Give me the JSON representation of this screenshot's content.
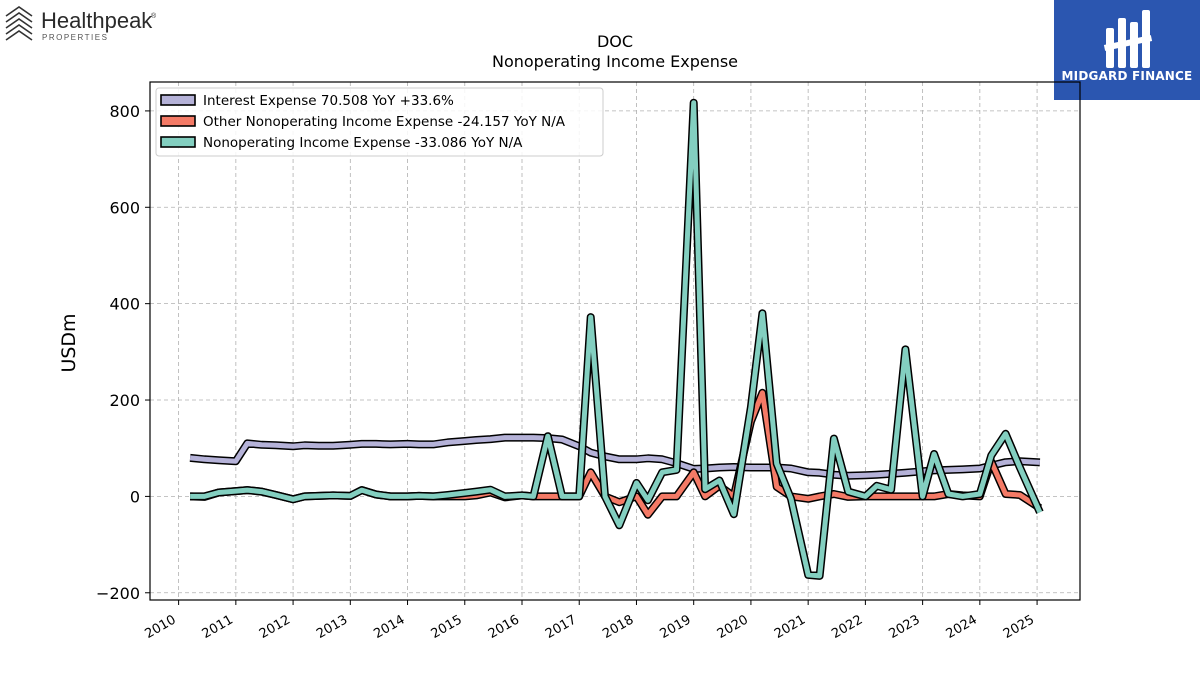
{
  "brands": {
    "left": {
      "name": "Healthpeak",
      "sub": "PROPERTIES",
      "mark": "®"
    },
    "right": {
      "name": "MIDGARD FINANCE"
    }
  },
  "chart_data": {
    "type": "line",
    "title": "DOC",
    "subtitle": "Nonoperating Income Expense",
    "ylabel": "USDm",
    "xlabel": "",
    "xlim": [
      2009.5,
      2025.75
    ],
    "ylim": [
      -215,
      860
    ],
    "yticks": [
      -200,
      0,
      200,
      400,
      600,
      800
    ],
    "xticks": [
      2010,
      2011,
      2012,
      2013,
      2014,
      2015,
      2016,
      2017,
      2018,
      2019,
      2020,
      2021,
      2022,
      2023,
      2024,
      2025
    ],
    "grid": true,
    "legend_position": "top-left",
    "series": [
      {
        "name": "Interest Expense",
        "legend": "Interest Expense  70.508 YoY +33.6%",
        "color": "#b5b2d8",
        "points": [
          [
            2010.2,
            80
          ],
          [
            2010.45,
            77
          ],
          [
            2010.7,
            75
          ],
          [
            2011.0,
            73
          ],
          [
            2011.2,
            110
          ],
          [
            2011.45,
            107
          ],
          [
            2011.7,
            106
          ],
          [
            2012.0,
            104
          ],
          [
            2012.2,
            106
          ],
          [
            2012.45,
            105
          ],
          [
            2012.7,
            105
          ],
          [
            2013.0,
            107
          ],
          [
            2013.2,
            109
          ],
          [
            2013.45,
            109
          ],
          [
            2013.7,
            108
          ],
          [
            2014.0,
            109
          ],
          [
            2014.2,
            108
          ],
          [
            2014.45,
            108
          ],
          [
            2014.7,
            112
          ],
          [
            2015.0,
            115
          ],
          [
            2015.2,
            117
          ],
          [
            2015.45,
            119
          ],
          [
            2015.7,
            122
          ],
          [
            2016.0,
            122
          ],
          [
            2016.2,
            122
          ],
          [
            2016.45,
            121
          ],
          [
            2016.7,
            118
          ],
          [
            2017.0,
            104
          ],
          [
            2017.2,
            91
          ],
          [
            2017.45,
            83
          ],
          [
            2017.7,
            77
          ],
          [
            2018.0,
            77
          ],
          [
            2018.2,
            79
          ],
          [
            2018.45,
            77
          ],
          [
            2018.7,
            69
          ],
          [
            2019.0,
            57
          ],
          [
            2019.2,
            58
          ],
          [
            2019.45,
            60
          ],
          [
            2019.7,
            61
          ],
          [
            2020.0,
            60
          ],
          [
            2020.2,
            60
          ],
          [
            2020.45,
            60
          ],
          [
            2020.7,
            58
          ],
          [
            2021.0,
            50
          ],
          [
            2021.2,
            49
          ],
          [
            2021.45,
            45
          ],
          [
            2021.7,
            43
          ],
          [
            2022.0,
            44
          ],
          [
            2022.2,
            45
          ],
          [
            2022.45,
            47
          ],
          [
            2022.7,
            49
          ],
          [
            2023.0,
            52
          ],
          [
            2023.2,
            54
          ],
          [
            2023.45,
            55
          ],
          [
            2023.7,
            56
          ],
          [
            2024.0,
            58
          ],
          [
            2024.2,
            64
          ],
          [
            2024.45,
            71
          ],
          [
            2024.7,
            73
          ],
          [
            2025.05,
            70.5
          ]
        ]
      },
      {
        "name": "Other Nonoperating Income Expense",
        "legend": "Other Nonoperating Income Expense  -24.157 YoY N/A",
        "color": "#f47a66",
        "points": [
          [
            2010.2,
            0
          ],
          [
            2010.45,
            -1
          ],
          [
            2010.7,
            8
          ],
          [
            2011.0,
            11
          ],
          [
            2011.2,
            13
          ],
          [
            2011.45,
            10
          ],
          [
            2011.7,
            3
          ],
          [
            2012.0,
            -6
          ],
          [
            2012.2,
            0
          ],
          [
            2012.45,
            1
          ],
          [
            2012.7,
            2
          ],
          [
            2013.0,
            1
          ],
          [
            2013.2,
            13
          ],
          [
            2013.45,
            4
          ],
          [
            2013.7,
            0
          ],
          [
            2014.0,
            0
          ],
          [
            2014.2,
            1
          ],
          [
            2014.45,
            0
          ],
          [
            2014.7,
            0
          ],
          [
            2015.0,
            0
          ],
          [
            2015.2,
            2
          ],
          [
            2015.45,
            8
          ],
          [
            2015.7,
            -2
          ],
          [
            2016.0,
            2
          ],
          [
            2016.2,
            0
          ],
          [
            2016.45,
            0
          ],
          [
            2016.7,
            0
          ],
          [
            2017.0,
            0
          ],
          [
            2017.2,
            50
          ],
          [
            2017.45,
            0
          ],
          [
            2017.7,
            -12
          ],
          [
            2018.0,
            0
          ],
          [
            2018.2,
            -38
          ],
          [
            2018.45,
            0
          ],
          [
            2018.7,
            0
          ],
          [
            2019.0,
            50
          ],
          [
            2019.2,
            0
          ],
          [
            2019.45,
            22
          ],
          [
            2019.7,
            0
          ],
          [
            2020.0,
            155
          ],
          [
            2020.2,
            215
          ],
          [
            2020.45,
            20
          ],
          [
            2020.7,
            0
          ],
          [
            2021.0,
            -5
          ],
          [
            2021.2,
            0
          ],
          [
            2021.45,
            5
          ],
          [
            2021.7,
            -1
          ],
          [
            2022.0,
            0
          ],
          [
            2022.2,
            0
          ],
          [
            2022.45,
            0
          ],
          [
            2022.7,
            0
          ],
          [
            2023.0,
            0
          ],
          [
            2023.2,
            0
          ],
          [
            2023.45,
            5
          ],
          [
            2023.7,
            2
          ],
          [
            2024.0,
            0
          ],
          [
            2024.2,
            72
          ],
          [
            2024.45,
            5
          ],
          [
            2024.7,
            3
          ],
          [
            2025.05,
            -24.2
          ]
        ]
      },
      {
        "name": "Nonoperating Income Expense",
        "legend": "Nonoperating Income Expense  -33.086 YoY N/A",
        "color": "#83cfc0",
        "points": [
          [
            2010.2,
            0
          ],
          [
            2010.45,
            0
          ],
          [
            2010.7,
            8
          ],
          [
            2011.0,
            11
          ],
          [
            2011.2,
            13
          ],
          [
            2011.45,
            10
          ],
          [
            2011.7,
            3
          ],
          [
            2012.0,
            -6
          ],
          [
            2012.2,
            0
          ],
          [
            2012.45,
            1
          ],
          [
            2012.7,
            2
          ],
          [
            2013.0,
            1
          ],
          [
            2013.2,
            13
          ],
          [
            2013.45,
            4
          ],
          [
            2013.7,
            0
          ],
          [
            2014.0,
            0
          ],
          [
            2014.2,
            1
          ],
          [
            2014.45,
            0
          ],
          [
            2014.7,
            3
          ],
          [
            2015.0,
            7
          ],
          [
            2015.2,
            10
          ],
          [
            2015.45,
            14
          ],
          [
            2015.7,
            0
          ],
          [
            2016.0,
            2
          ],
          [
            2016.2,
            0
          ],
          [
            2016.45,
            125
          ],
          [
            2016.7,
            0
          ],
          [
            2017.0,
            0
          ],
          [
            2017.2,
            372
          ],
          [
            2017.45,
            0
          ],
          [
            2017.7,
            -60
          ],
          [
            2018.0,
            28
          ],
          [
            2018.2,
            -8
          ],
          [
            2018.45,
            50
          ],
          [
            2018.7,
            55
          ],
          [
            2019.0,
            817
          ],
          [
            2019.2,
            15
          ],
          [
            2019.45,
            33
          ],
          [
            2019.7,
            -37
          ],
          [
            2020.0,
            185
          ],
          [
            2020.2,
            380
          ],
          [
            2020.45,
            68
          ],
          [
            2020.7,
            -5
          ],
          [
            2021.0,
            -163
          ],
          [
            2021.2,
            -165
          ],
          [
            2021.45,
            120
          ],
          [
            2021.7,
            10
          ],
          [
            2022.0,
            0
          ],
          [
            2022.2,
            22
          ],
          [
            2022.45,
            14
          ],
          [
            2022.7,
            305
          ],
          [
            2023.0,
            0
          ],
          [
            2023.2,
            88
          ],
          [
            2023.45,
            5
          ],
          [
            2023.7,
            0
          ],
          [
            2024.0,
            5
          ],
          [
            2024.2,
            85
          ],
          [
            2024.45,
            130
          ],
          [
            2024.7,
            60
          ],
          [
            2025.05,
            -33.1
          ]
        ]
      }
    ]
  }
}
